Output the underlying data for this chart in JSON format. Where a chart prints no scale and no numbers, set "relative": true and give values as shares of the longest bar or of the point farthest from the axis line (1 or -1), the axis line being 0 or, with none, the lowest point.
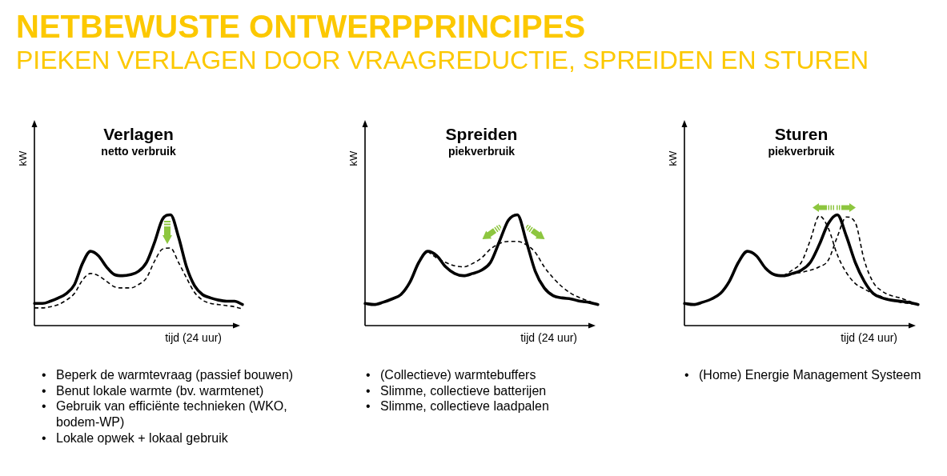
{
  "chart_data": [
    {
      "type": "other",
      "title": "NETBEWUSTE ONTWERPPRINCIPES",
      "subtitle": "PIEKEN VERLAGEN DOOR VRAAGREDUCTIE, SPREIDEN EN STUREN"
    },
    {
      "type": "line",
      "title": "Verlagen",
      "subtitle": "netto verbruik",
      "xlabel": "tijd (24 uur)",
      "ylabel": "kW",
      "relative": true,
      "marker": "none",
      "categories": [
        null,
        null,
        null,
        null,
        null,
        null,
        null,
        null,
        null,
        null,
        null,
        null,
        null,
        null,
        null,
        null,
        null,
        null,
        null,
        null,
        null,
        null,
        null,
        null,
        null,
        null,
        null
      ],
      "series": [
        {
          "color": "#000000",
          "line_style": "solid",
          "values": [
            0.2,
            0.2,
            0.22,
            0.25,
            0.29,
            0.37,
            0.56,
            0.67,
            0.63,
            0.53,
            0.46,
            0.45,
            0.46,
            0.49,
            0.57,
            0.75,
            0.96,
            1,
            0.8,
            0.53,
            0.36,
            0.28,
            0.25,
            0.23,
            0.22,
            0.22,
            0.19
          ]
        },
        {
          "color": "#000000",
          "line_style": "dashed",
          "values": [
            0.16,
            0.16,
            0.17,
            0.19,
            0.23,
            0.29,
            0.41,
            0.47,
            0.45,
            0.4,
            0.35,
            0.34,
            0.34,
            0.37,
            0.43,
            0.58,
            0.69,
            0.7,
            0.57,
            0.43,
            0.3,
            0.23,
            0.2,
            0.19,
            0.18,
            0.17,
            0.15
          ]
        }
      ],
      "annotations": [
        "• Beperk de warmtevraag (passief bouwen)",
        "• Benut lokale warmte (bv. warmtenet)",
        "• Gebruik van efficiënte technieken (WKO, bodem-WP)",
        "• Lokale opwek + lokaal gebruik"
      ]
    },
    {
      "type": "line",
      "title": "Spreiden",
      "subtitle": "piekverbruik",
      "xlabel": "tijd (24 uur)",
      "ylabel": "kW",
      "relative": true,
      "marker": "none",
      "categories": [
        null,
        null,
        null,
        null,
        null,
        null,
        null,
        null,
        null,
        null,
        null,
        null,
        null,
        null,
        null,
        null,
        null,
        null,
        null,
        null,
        null,
        null,
        null,
        null,
        null,
        null,
        null
      ],
      "series": [
        {
          "color": "#000000",
          "line_style": "solid",
          "values": [
            0.2,
            0.19,
            0.21,
            0.24,
            0.28,
            0.39,
            0.57,
            0.67,
            0.63,
            0.53,
            0.47,
            0.45,
            0.47,
            0.5,
            0.57,
            0.76,
            0.95,
            1,
            0.76,
            0.49,
            0.34,
            0.27,
            0.25,
            0.24,
            0.22,
            0.21,
            0.19
          ]
        },
        {
          "color": "#000000",
          "line_style": "dashed",
          "values": [
            null,
            null,
            null,
            null,
            null,
            null,
            null,
            0.67,
            0.61,
            0.57,
            0.54,
            0.53,
            0.56,
            0.61,
            0.69,
            0.74,
            0.76,
            0.76,
            0.73,
            0.66,
            0.53,
            0.43,
            0.35,
            0.29,
            0.25,
            0.22,
            0.19
          ]
        }
      ],
      "annotations": [
        "• (Collectieve) warmtebuffers",
        "• Slimme, collectieve batterijen",
        "• Slimme, collectieve laadpalen"
      ]
    },
    {
      "type": "line",
      "title": "Sturen",
      "subtitle": "piekverbruik",
      "xlabel": "tijd (24 uur)",
      "ylabel": "kW",
      "relative": true,
      "marker": "none",
      "categories": [
        null,
        null,
        null,
        null,
        null,
        null,
        null,
        null,
        null,
        null,
        null,
        null,
        null,
        null,
        null,
        null,
        null,
        null,
        null,
        null,
        null,
        null,
        null,
        null,
        null,
        null,
        null
      ],
      "series": [
        {
          "color": "#000000",
          "line_style": "solid",
          "values": [
            0.2,
            0.19,
            0.21,
            0.24,
            0.29,
            0.4,
            0.57,
            0.67,
            0.63,
            0.52,
            0.46,
            0.45,
            0.47,
            0.5,
            0.57,
            0.73,
            0.92,
            1,
            0.81,
            0.57,
            0.4,
            0.29,
            0.25,
            0.23,
            0.22,
            0.21,
            0.19
          ]
        },
        {
          "color": "#000000",
          "line_style": "dashed",
          "values": [
            null,
            null,
            null,
            null,
            null,
            null,
            null,
            null,
            null,
            null,
            null,
            0.45,
            0.5,
            0.57,
            0.77,
            0.99,
            0.88,
            0.64,
            0.48,
            0.38,
            0.33,
            0.29,
            0.26,
            0.23,
            0.21,
            0.2,
            0.19
          ]
        },
        {
          "color": "#000000",
          "line_style": "dashed",
          "values": [
            null,
            null,
            null,
            null,
            null,
            null,
            null,
            null,
            null,
            null,
            null,
            0.45,
            0.47,
            0.48,
            0.5,
            0.53,
            0.59,
            0.8,
            0.98,
            0.93,
            0.59,
            0.39,
            0.31,
            0.27,
            0.25,
            0.22,
            0.19
          ]
        }
      ],
      "annotations": [
        "• (Home) Energie Management Systeem"
      ]
    }
  ]
}
